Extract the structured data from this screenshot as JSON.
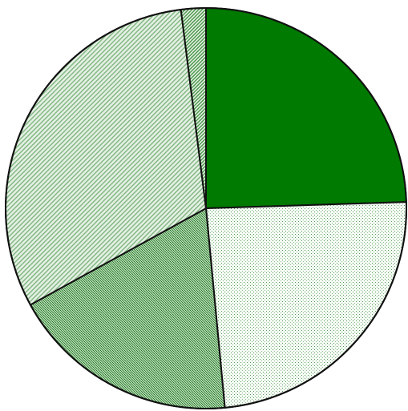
{
  "chart_data": {
    "type": "pie",
    "slices": [
      {
        "value": 24.5,
        "color": "#007a00",
        "pattern": "solid"
      },
      {
        "value": 24.0,
        "color": "#c8dcc8",
        "pattern": "dots-light"
      },
      {
        "value": 18.5,
        "color": "#5aa05a",
        "pattern": "dots-dense"
      },
      {
        "value": 31.0,
        "color": "#9ec89e",
        "pattern": "hatch"
      },
      {
        "value": 2.0,
        "color": "#78b478",
        "pattern": "hatch-dense"
      }
    ],
    "start_angle_deg": 0,
    "direction": "clockwise",
    "legend": "none",
    "data_labels": false
  }
}
